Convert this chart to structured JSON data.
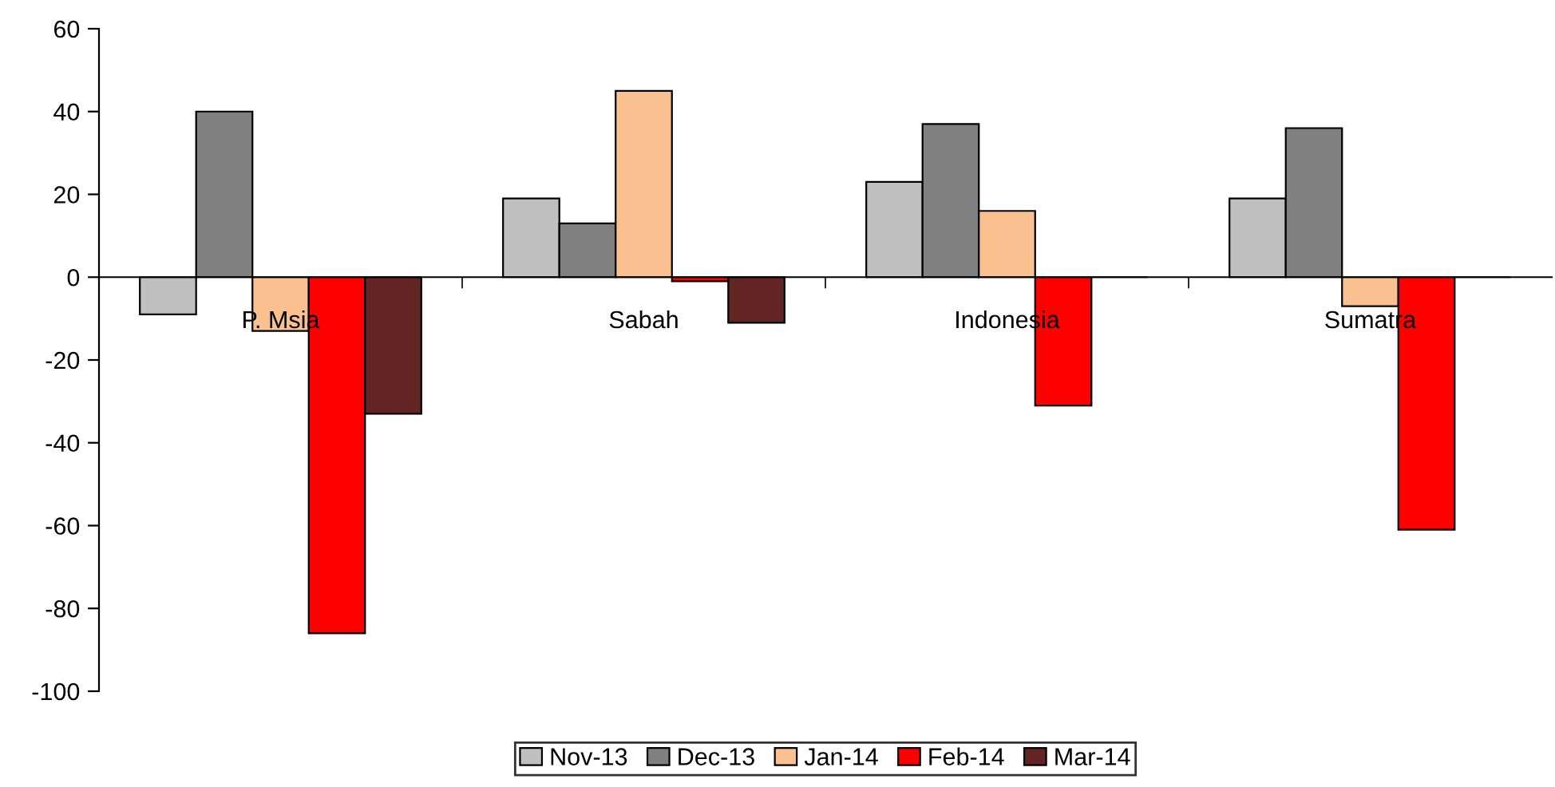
{
  "chart_data": {
    "type": "bar",
    "categories": [
      "P. Msia",
      "Sabah",
      "Indonesia",
      "Sumatra"
    ],
    "series": [
      {
        "name": "Nov-13",
        "color": "#c0c0c0",
        "values": [
          -9,
          19,
          23,
          19
        ]
      },
      {
        "name": "Dec-13",
        "color": "#808080",
        "values": [
          40,
          13,
          37,
          36
        ]
      },
      {
        "name": "Jan-14",
        "color": "#fac090",
        "values": [
          -13,
          45,
          16,
          -7
        ]
      },
      {
        "name": "Feb-14",
        "color": "#ff0000",
        "values": [
          -86,
          -1,
          -31,
          -61
        ]
      },
      {
        "name": "Mar-14",
        "color": "#632523",
        "values": [
          -33,
          -11,
          0,
          0
        ]
      }
    ],
    "ylim": [
      -100,
      60
    ],
    "yticks": [
      -100,
      -80,
      -60,
      -40,
      -20,
      0,
      20,
      40,
      60
    ],
    "grid": false,
    "legend": "bottom"
  }
}
